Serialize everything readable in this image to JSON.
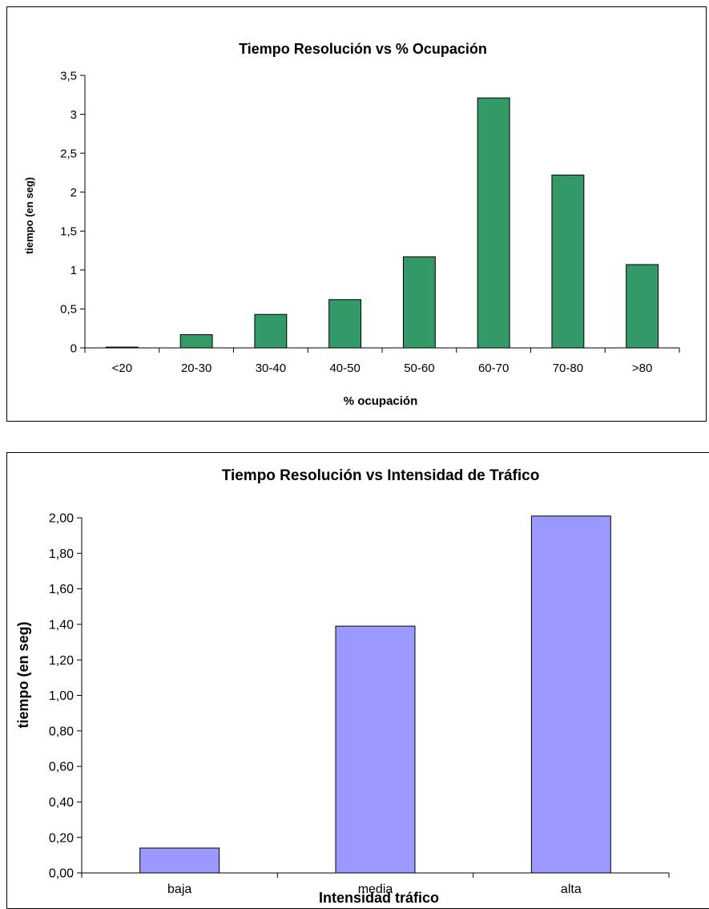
{
  "chart_data": [
    {
      "type": "bar",
      "title": "Tiempo Resolución vs % Ocupación",
      "xlabel": "% ocupación",
      "ylabel": "tiempo (en seg)",
      "categories": [
        "<20",
        "20-30",
        "30-40",
        "40-50",
        "50-60",
        "60-70",
        "70-80",
        ">80"
      ],
      "values": [
        0.01,
        0.17,
        0.43,
        0.62,
        1.17,
        3.21,
        2.22,
        1.07
      ],
      "yticks": [
        "0",
        "0,5",
        "1",
        "1,5",
        "2",
        "2,5",
        "3",
        "3,5"
      ],
      "ylim": [
        0,
        3.5
      ],
      "grid": false,
      "bar_color": "#339966"
    },
    {
      "type": "bar",
      "title": "Tiempo Resolución vs Intensidad de Tráfico",
      "xlabel": "Intensidad tráfico",
      "ylabel": "tiempo (en seg)",
      "categories": [
        "baja",
        "media",
        "alta"
      ],
      "values": [
        0.14,
        1.39,
        2.01
      ],
      "yticks": [
        "0,00",
        "0,20",
        "0,40",
        "0,60",
        "0,80",
        "1,00",
        "1,20",
        "1,40",
        "1,60",
        "1,80",
        "2,00"
      ],
      "ylim": [
        0,
        2.0
      ],
      "grid": false,
      "bar_color": "#9999FF"
    }
  ]
}
